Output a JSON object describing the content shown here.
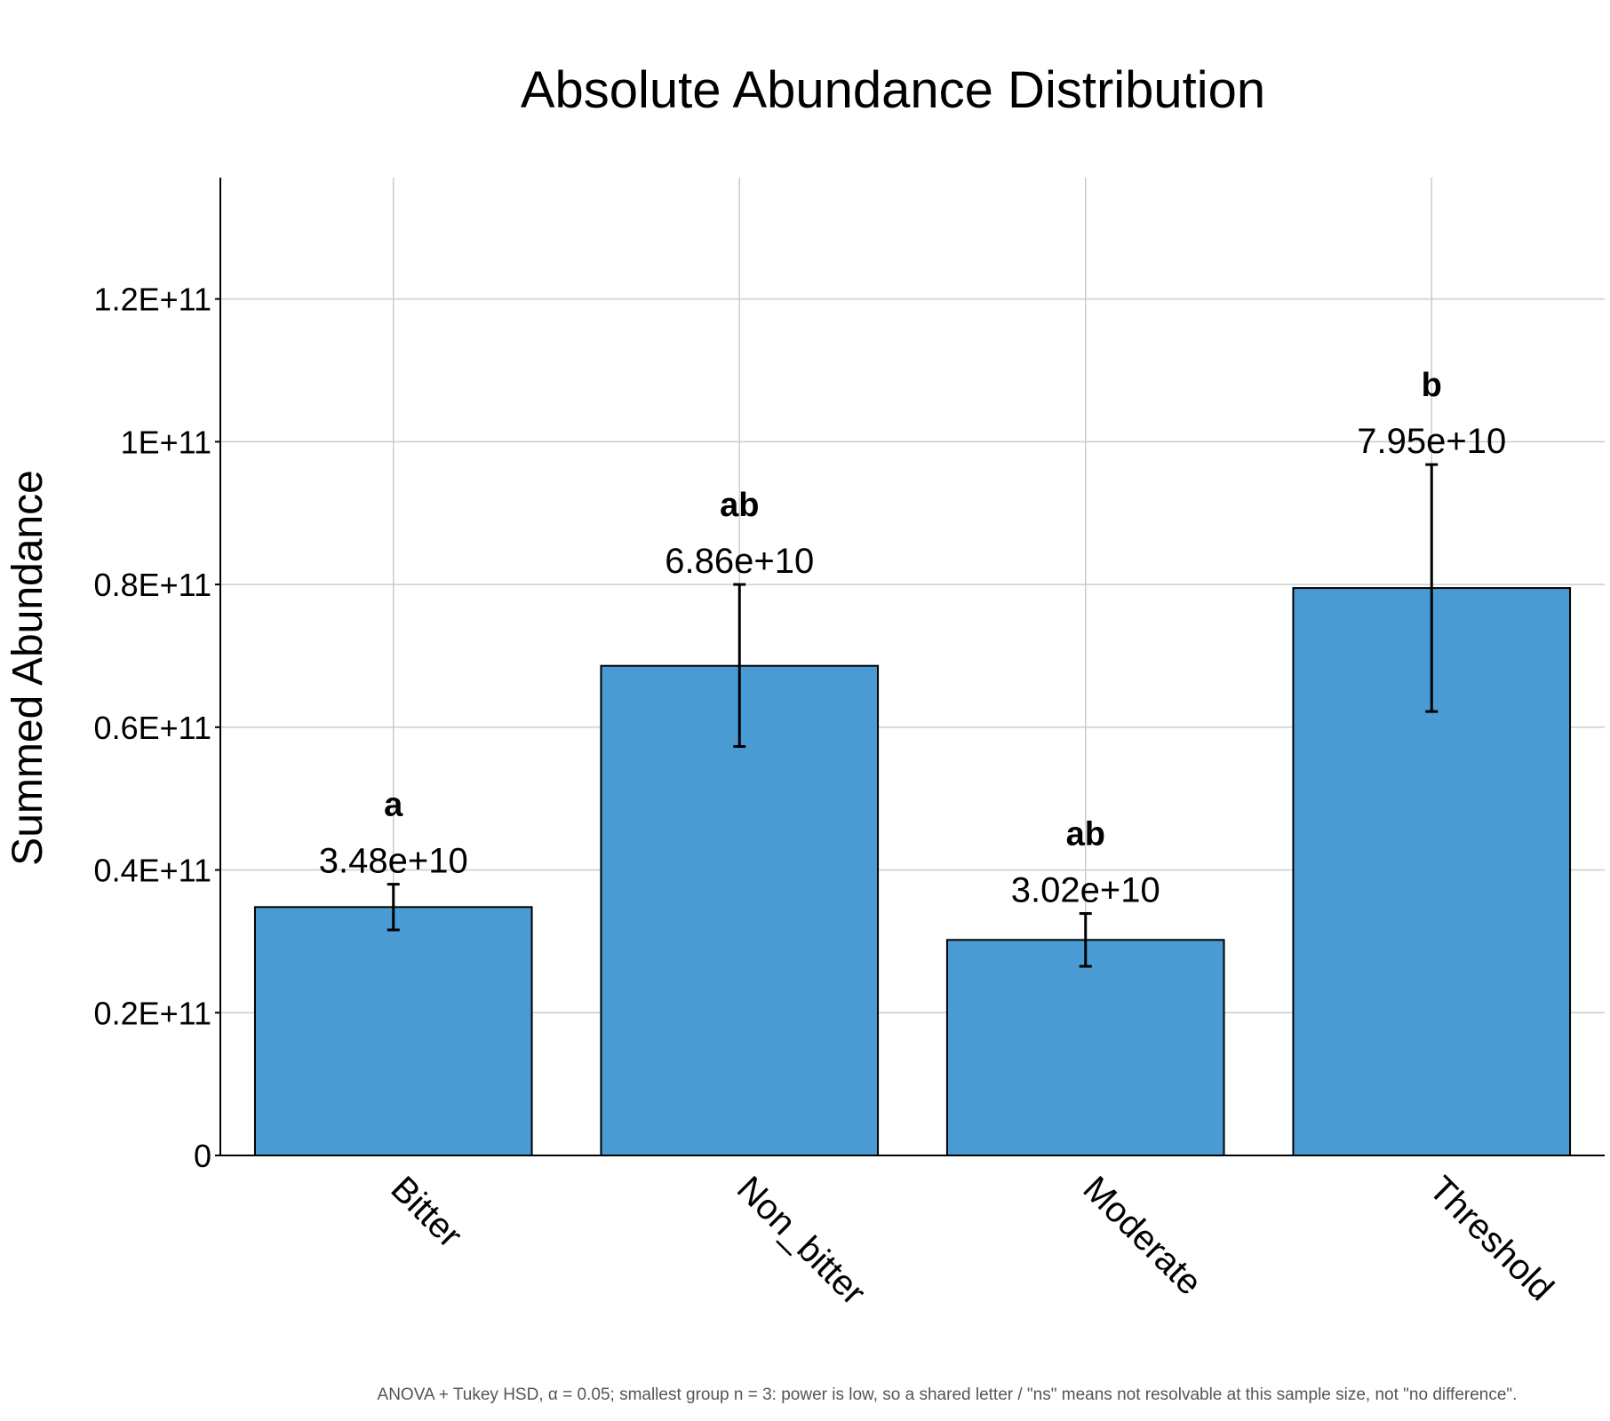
{
  "chart_data": {
    "type": "bar",
    "title": "Absolute Abundance Distribution",
    "xlabel": "",
    "ylabel": "Summed Abundance",
    "categories": [
      "Bitter",
      "Non_bitter",
      "Moderate",
      "Threshold"
    ],
    "values": [
      34800000000,
      68600000000,
      30200000000,
      79500000000
    ],
    "error_low": [
      31600000000,
      57300000000,
      26500000000,
      62200000000
    ],
    "error_high": [
      38000000000,
      80000000000,
      33900000000,
      96800000000
    ],
    "value_labels": [
      "3.48e+10",
      "6.86e+10",
      "3.02e+10",
      "7.95e+10"
    ],
    "significance_letters": [
      "a",
      "ab",
      "ab",
      "b"
    ],
    "ylim": [
      0,
      137000000000
    ],
    "yticks": [
      0,
      20000000000,
      40000000000,
      60000000000,
      80000000000,
      100000000000,
      120000000000
    ],
    "ytick_labels": [
      "0",
      "0.2E+11",
      "0.4E+11",
      "0.6E+11",
      "0.8E+11",
      "1E+11",
      "1.2E+11"
    ],
    "grid": true,
    "bar_color": "#4a9bd4",
    "footnote": "ANOVA + Tukey HSD, α = 0.05; smallest group n = 3: power is low, so a shared letter / \"ns\" means not resolvable at this sample size, not \"no difference\"."
  }
}
